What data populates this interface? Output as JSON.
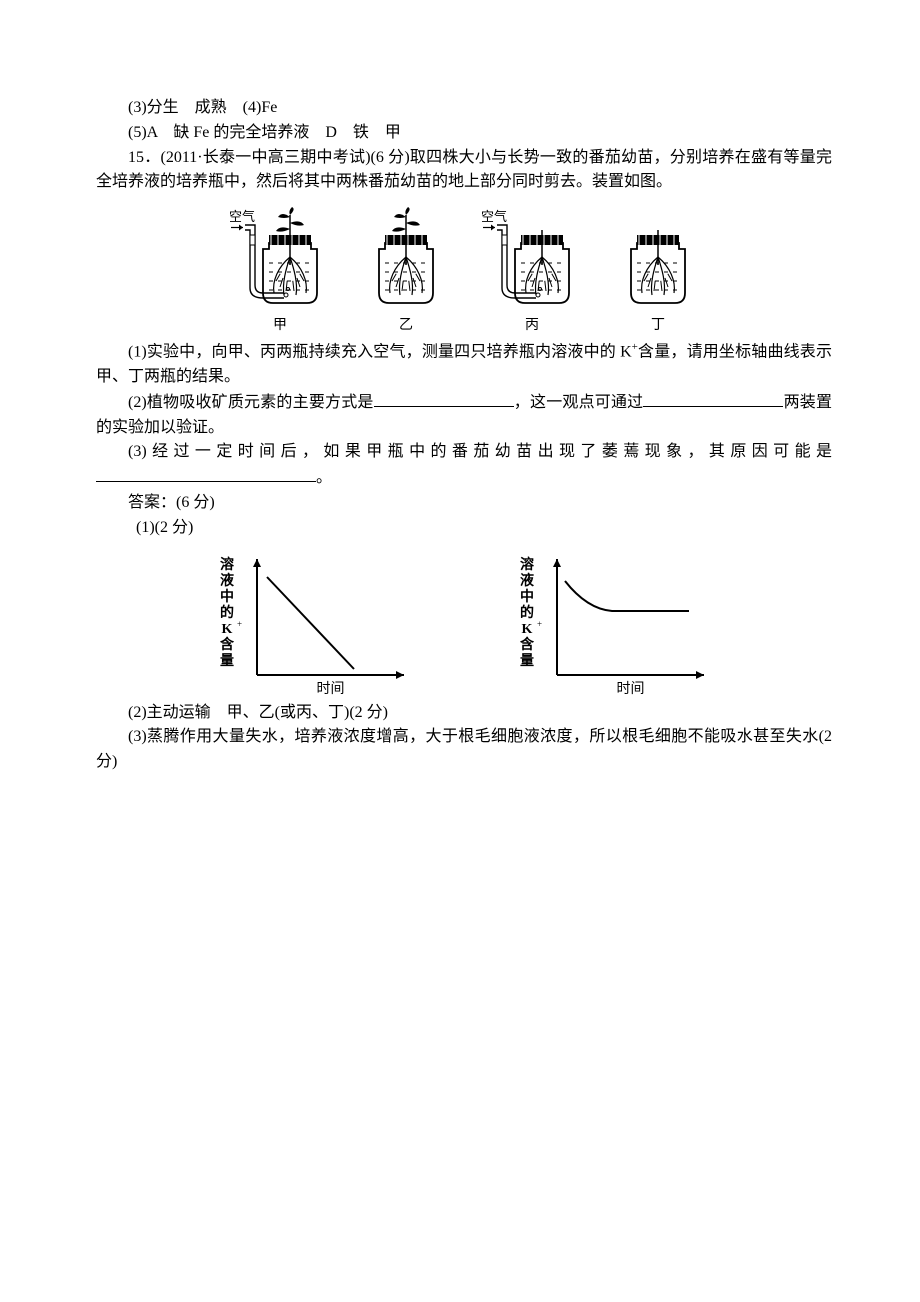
{
  "ans3": "(3)分生　成熟　(4)Fe",
  "ans5": "(5)A　缺 Fe 的完全培养液　D　铁　甲",
  "q15_lead": "15．(2011·长泰一中高三期中考试)(6 分)取四株大小与长势一致的番茄幼苗，分别培养在盛有等量完全培养液的培养瓶中，然后将其中两株番茄幼苗的地上部分同时剪去。装置如图。",
  "jars": {
    "airLabel": "空气",
    "captions": {
      "a": "甲",
      "b": "乙",
      "c": "丙",
      "d": "丁"
    }
  },
  "q15_1a": "(1)实验中，向甲、丙两瓶持续充入空气，测量四只培养瓶内溶液中的 K",
  "q15_1b": "含量，请用坐标轴曲线表示甲、丁两瓶的结果。",
  "q15_2a": "(2)植物吸收矿质元素的主要方式是",
  "q15_2b": "，这一观点可通过",
  "q15_2c": "两装置的实验加以验证。",
  "q15_3": "(3)经过一定时间后，如果甲瓶中的番茄幼苗出现了萎蔫现象，其原因可能是",
  "q15_3end": "。",
  "ans_head": "答案：(6 分)",
  "ans1_head": "(1)(2 分)",
  "chart": {
    "yLabelChars": [
      "溶",
      "液",
      "中",
      "的",
      "K",
      "含",
      "量"
    ],
    "ySuper": "+",
    "xLabel": "时间",
    "stroke": "#000000",
    "lineWidth": 2,
    "background": "#ffffff"
  },
  "ans2": "(2)主动运输　甲、乙(或丙、丁)(2 分)",
  "ans3b": "(3)蒸腾作用大量失水，培养液浓度增高，大于根毛细胞液浓度，所以根毛细胞不能吸水甚至失水(2 分)"
}
